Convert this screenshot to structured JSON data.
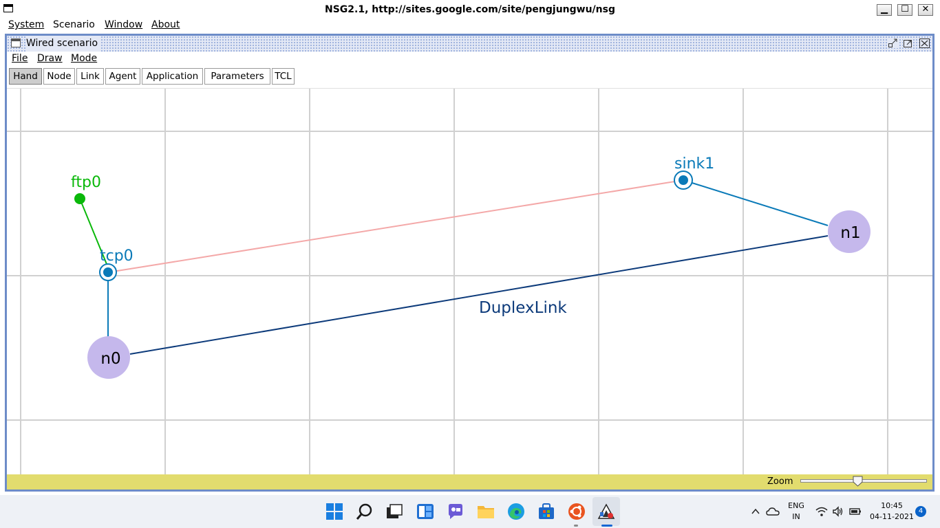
{
  "window": {
    "title": "NSG2.1, http://sites.google.com/site/pengjungwu/nsg",
    "minimize": "▁",
    "maximize": "☐",
    "close": "✕"
  },
  "menu": [
    "System",
    "Scenario",
    "Window",
    "About"
  ],
  "internal_frame": {
    "title": "Wired scenario",
    "menu": [
      "File",
      "Draw",
      "Mode"
    ],
    "toolbar": {
      "buttons": [
        "Hand",
        "Node",
        "Link",
        "Agent",
        "Application",
        "Parameters",
        "TCL"
      ],
      "active": "Hand"
    }
  },
  "canvas": {
    "nodes": [
      "n0",
      "n1"
    ],
    "agents": [
      "tcp0",
      "sink1"
    ],
    "applications": [
      "ftp0"
    ],
    "link_label": "DuplexLink",
    "colors": {
      "node_fill": "#c5b8ec",
      "agent": "#0a7ab8",
      "application": "#0ab80a",
      "duplex_link": "#0c3a7a",
      "agent_connection": "#f4a8a8",
      "grid": "#d0d0d0"
    }
  },
  "status": {
    "zoom_label": "Zoom",
    "zoom_level": 0.45
  },
  "taskbar": {
    "icons": [
      "windows-start-icon",
      "search-icon",
      "task-view-icon",
      "widgets-icon",
      "chat-icon",
      "file-explorer-icon",
      "edge-browser-icon",
      "store-icon",
      "ubuntu-icon",
      "java-app-icon"
    ],
    "tray": {
      "language": "ENG",
      "region": "IN",
      "time": "10:45",
      "date": "04-11-2021",
      "notifications": "4"
    }
  }
}
